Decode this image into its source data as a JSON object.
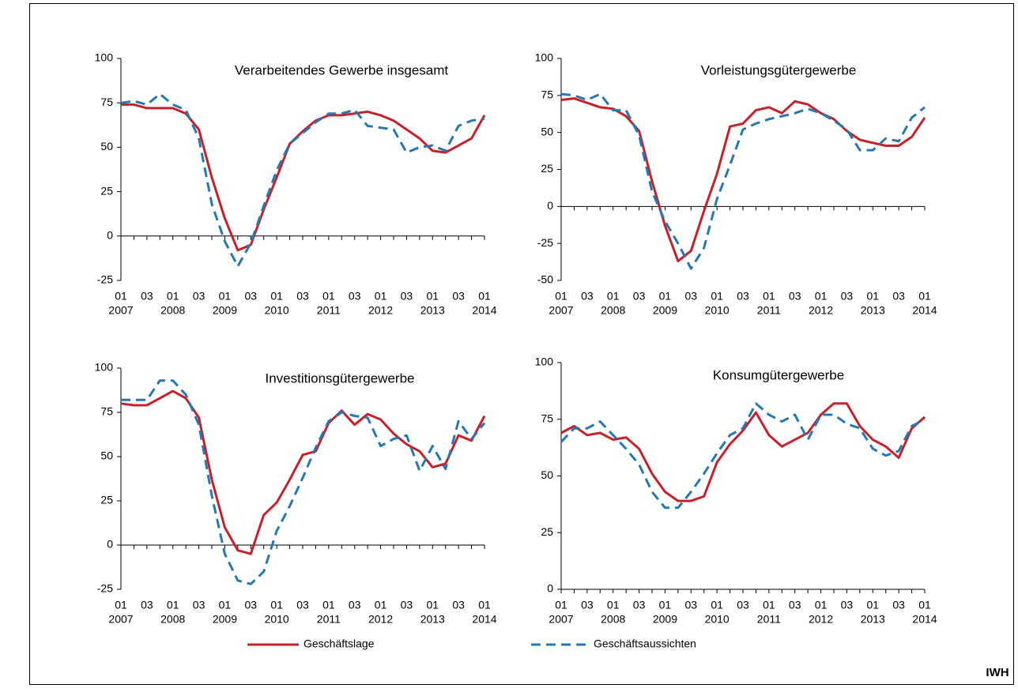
{
  "chart_data": [
    {
      "type": "line",
      "title": "Verarbeitendes Gewerbe insgesamt",
      "categories": [
        "01",
        null,
        "03",
        null,
        "01",
        null,
        "03",
        null,
        "01",
        null,
        "03",
        null,
        "01",
        null,
        "03",
        null,
        "01",
        null,
        "03",
        null,
        "01",
        null,
        "03",
        null,
        "01",
        null,
        "03",
        null,
        "01"
      ],
      "x_years": [
        "2007",
        null,
        null,
        null,
        "2008",
        null,
        null,
        null,
        "2009",
        null,
        null,
        null,
        "2010",
        null,
        null,
        null,
        "2011",
        null,
        null,
        null,
        "2012",
        null,
        null,
        null,
        "2013",
        null,
        null,
        null,
        "2014"
      ],
      "ylim": [
        -25,
        100
      ],
      "yticks": [
        -25,
        0,
        25,
        50,
        75,
        100
      ],
      "series": [
        {
          "name": "Geschäftslage",
          "color": "#c8202a",
          "dash": false,
          "values": [
            74,
            74,
            72,
            72,
            72,
            69,
            60,
            33,
            10,
            -8,
            -5,
            15,
            33,
            52,
            59,
            65,
            68,
            68,
            69,
            70,
            68,
            65,
            60,
            55,
            48,
            47,
            51,
            55,
            68
          ]
        },
        {
          "name": "Geschäftsaussichten",
          "color": "#2678b2",
          "dash": true,
          "values": [
            75,
            76,
            74,
            80,
            74,
            71,
            55,
            18,
            -3,
            -17,
            -4,
            17,
            37,
            52,
            58,
            64,
            69,
            69,
            71,
            62,
            61,
            60,
            47,
            50,
            51,
            48,
            62,
            65,
            66
          ]
        }
      ]
    },
    {
      "type": "line",
      "title": "Vorleistungsgütergewerbe",
      "categories": [
        "01",
        null,
        "03",
        null,
        "01",
        null,
        "03",
        null,
        "01",
        null,
        "03",
        null,
        "01",
        null,
        "03",
        null,
        "01",
        null,
        "03",
        null,
        "01",
        null,
        "03",
        null,
        "01",
        null,
        "03",
        null,
        "01"
      ],
      "x_years": [
        "2007",
        null,
        null,
        null,
        "2008",
        null,
        null,
        null,
        "2009",
        null,
        null,
        null,
        "2010",
        null,
        null,
        null,
        "2011",
        null,
        null,
        null,
        "2012",
        null,
        null,
        null,
        "2013",
        null,
        null,
        null,
        "2014"
      ],
      "ylim": [
        -50,
        100
      ],
      "yticks": [
        -50,
        -25,
        0,
        25,
        50,
        75,
        100
      ],
      "series": [
        {
          "name": "Geschäftslage",
          "color": "#c8202a",
          "dash": false,
          "values": [
            72,
            73,
            70,
            67,
            66,
            61,
            51,
            17,
            -13,
            -37,
            -30,
            -3,
            22,
            54,
            56,
            65,
            67,
            63,
            71,
            69,
            63,
            59,
            51,
            45,
            43,
            41,
            41,
            47,
            60
          ]
        },
        {
          "name": "Geschäftsaussichten",
          "color": "#2678b2",
          "dash": true,
          "values": [
            76,
            75,
            72,
            76,
            65,
            65,
            48,
            10,
            -10,
            -25,
            -42,
            -28,
            5,
            28,
            52,
            56,
            59,
            61,
            63,
            66,
            63,
            58,
            52,
            38,
            38,
            46,
            44,
            60,
            67
          ]
        }
      ]
    },
    {
      "type": "line",
      "title": "Investitionsgütergewerbe",
      "categories": [
        "01",
        null,
        "03",
        null,
        "01",
        null,
        "03",
        null,
        "01",
        null,
        "03",
        null,
        "01",
        null,
        "03",
        null,
        "01",
        null,
        "03",
        null,
        "01",
        null,
        "03",
        null,
        "01",
        null,
        "03",
        null,
        "01"
      ],
      "x_years": [
        "2007",
        null,
        null,
        null,
        "2008",
        null,
        null,
        null,
        "2009",
        null,
        null,
        null,
        "2010",
        null,
        null,
        null,
        "2011",
        null,
        null,
        null,
        "2012",
        null,
        null,
        null,
        "2013",
        null,
        null,
        null,
        "2014"
      ],
      "ylim": [
        -25,
        100
      ],
      "yticks": [
        -25,
        0,
        25,
        50,
        75,
        100
      ],
      "series": [
        {
          "name": "Geschäftslage",
          "color": "#c8202a",
          "dash": false,
          "values": [
            80,
            79,
            79,
            83,
            87,
            83,
            72,
            37,
            10,
            -3,
            -5,
            17,
            24,
            37,
            51,
            53,
            69,
            76,
            68,
            74,
            71,
            63,
            57,
            53,
            44,
            46,
            62,
            59,
            73
          ]
        },
        {
          "name": "Geschäftsaussichten",
          "color": "#2678b2",
          "dash": true,
          "values": [
            82,
            82,
            82,
            93,
            93,
            85,
            68,
            28,
            -5,
            -20,
            -22,
            -15,
            8,
            22,
            38,
            55,
            70,
            75,
            73,
            72,
            56,
            60,
            62,
            42,
            56,
            43,
            70,
            60,
            69
          ]
        }
      ]
    },
    {
      "type": "line",
      "title": "Konsumgütergewerbe",
      "categories": [
        "01",
        null,
        "03",
        null,
        "01",
        null,
        "03",
        null,
        "01",
        null,
        "03",
        null,
        "01",
        null,
        "03",
        null,
        "01",
        null,
        "03",
        null,
        "01",
        null,
        "03",
        null,
        "01",
        null,
        "03",
        null,
        "01"
      ],
      "x_years": [
        "2007",
        null,
        null,
        null,
        "2008",
        null,
        null,
        null,
        "2009",
        null,
        null,
        null,
        "2010",
        null,
        null,
        null,
        "2011",
        null,
        null,
        null,
        "2012",
        null,
        null,
        null,
        "2013",
        null,
        null,
        null,
        "2014"
      ],
      "ylim": [
        0,
        100
      ],
      "yticks": [
        0,
        25,
        50,
        75,
        100
      ],
      "series": [
        {
          "name": "Geschäftslage",
          "color": "#c8202a",
          "dash": false,
          "values": [
            69,
            72,
            68,
            69,
            66,
            67,
            62,
            51,
            43,
            39,
            39,
            41,
            56,
            64,
            70,
            78,
            68,
            63,
            66,
            69,
            77,
            82,
            82,
            72,
            66,
            63,
            58,
            71,
            76
          ]
        },
        {
          "name": "Geschäftsaussichten",
          "color": "#2678b2",
          "dash": true,
          "values": [
            65,
            71,
            71,
            74,
            68,
            62,
            55,
            43,
            36,
            36,
            43,
            51,
            60,
            68,
            71,
            82,
            77,
            74,
            77,
            66,
            77,
            77,
            73,
            71,
            62,
            59,
            61,
            72,
            75
          ]
        }
      ]
    }
  ],
  "source": "IWH"
}
